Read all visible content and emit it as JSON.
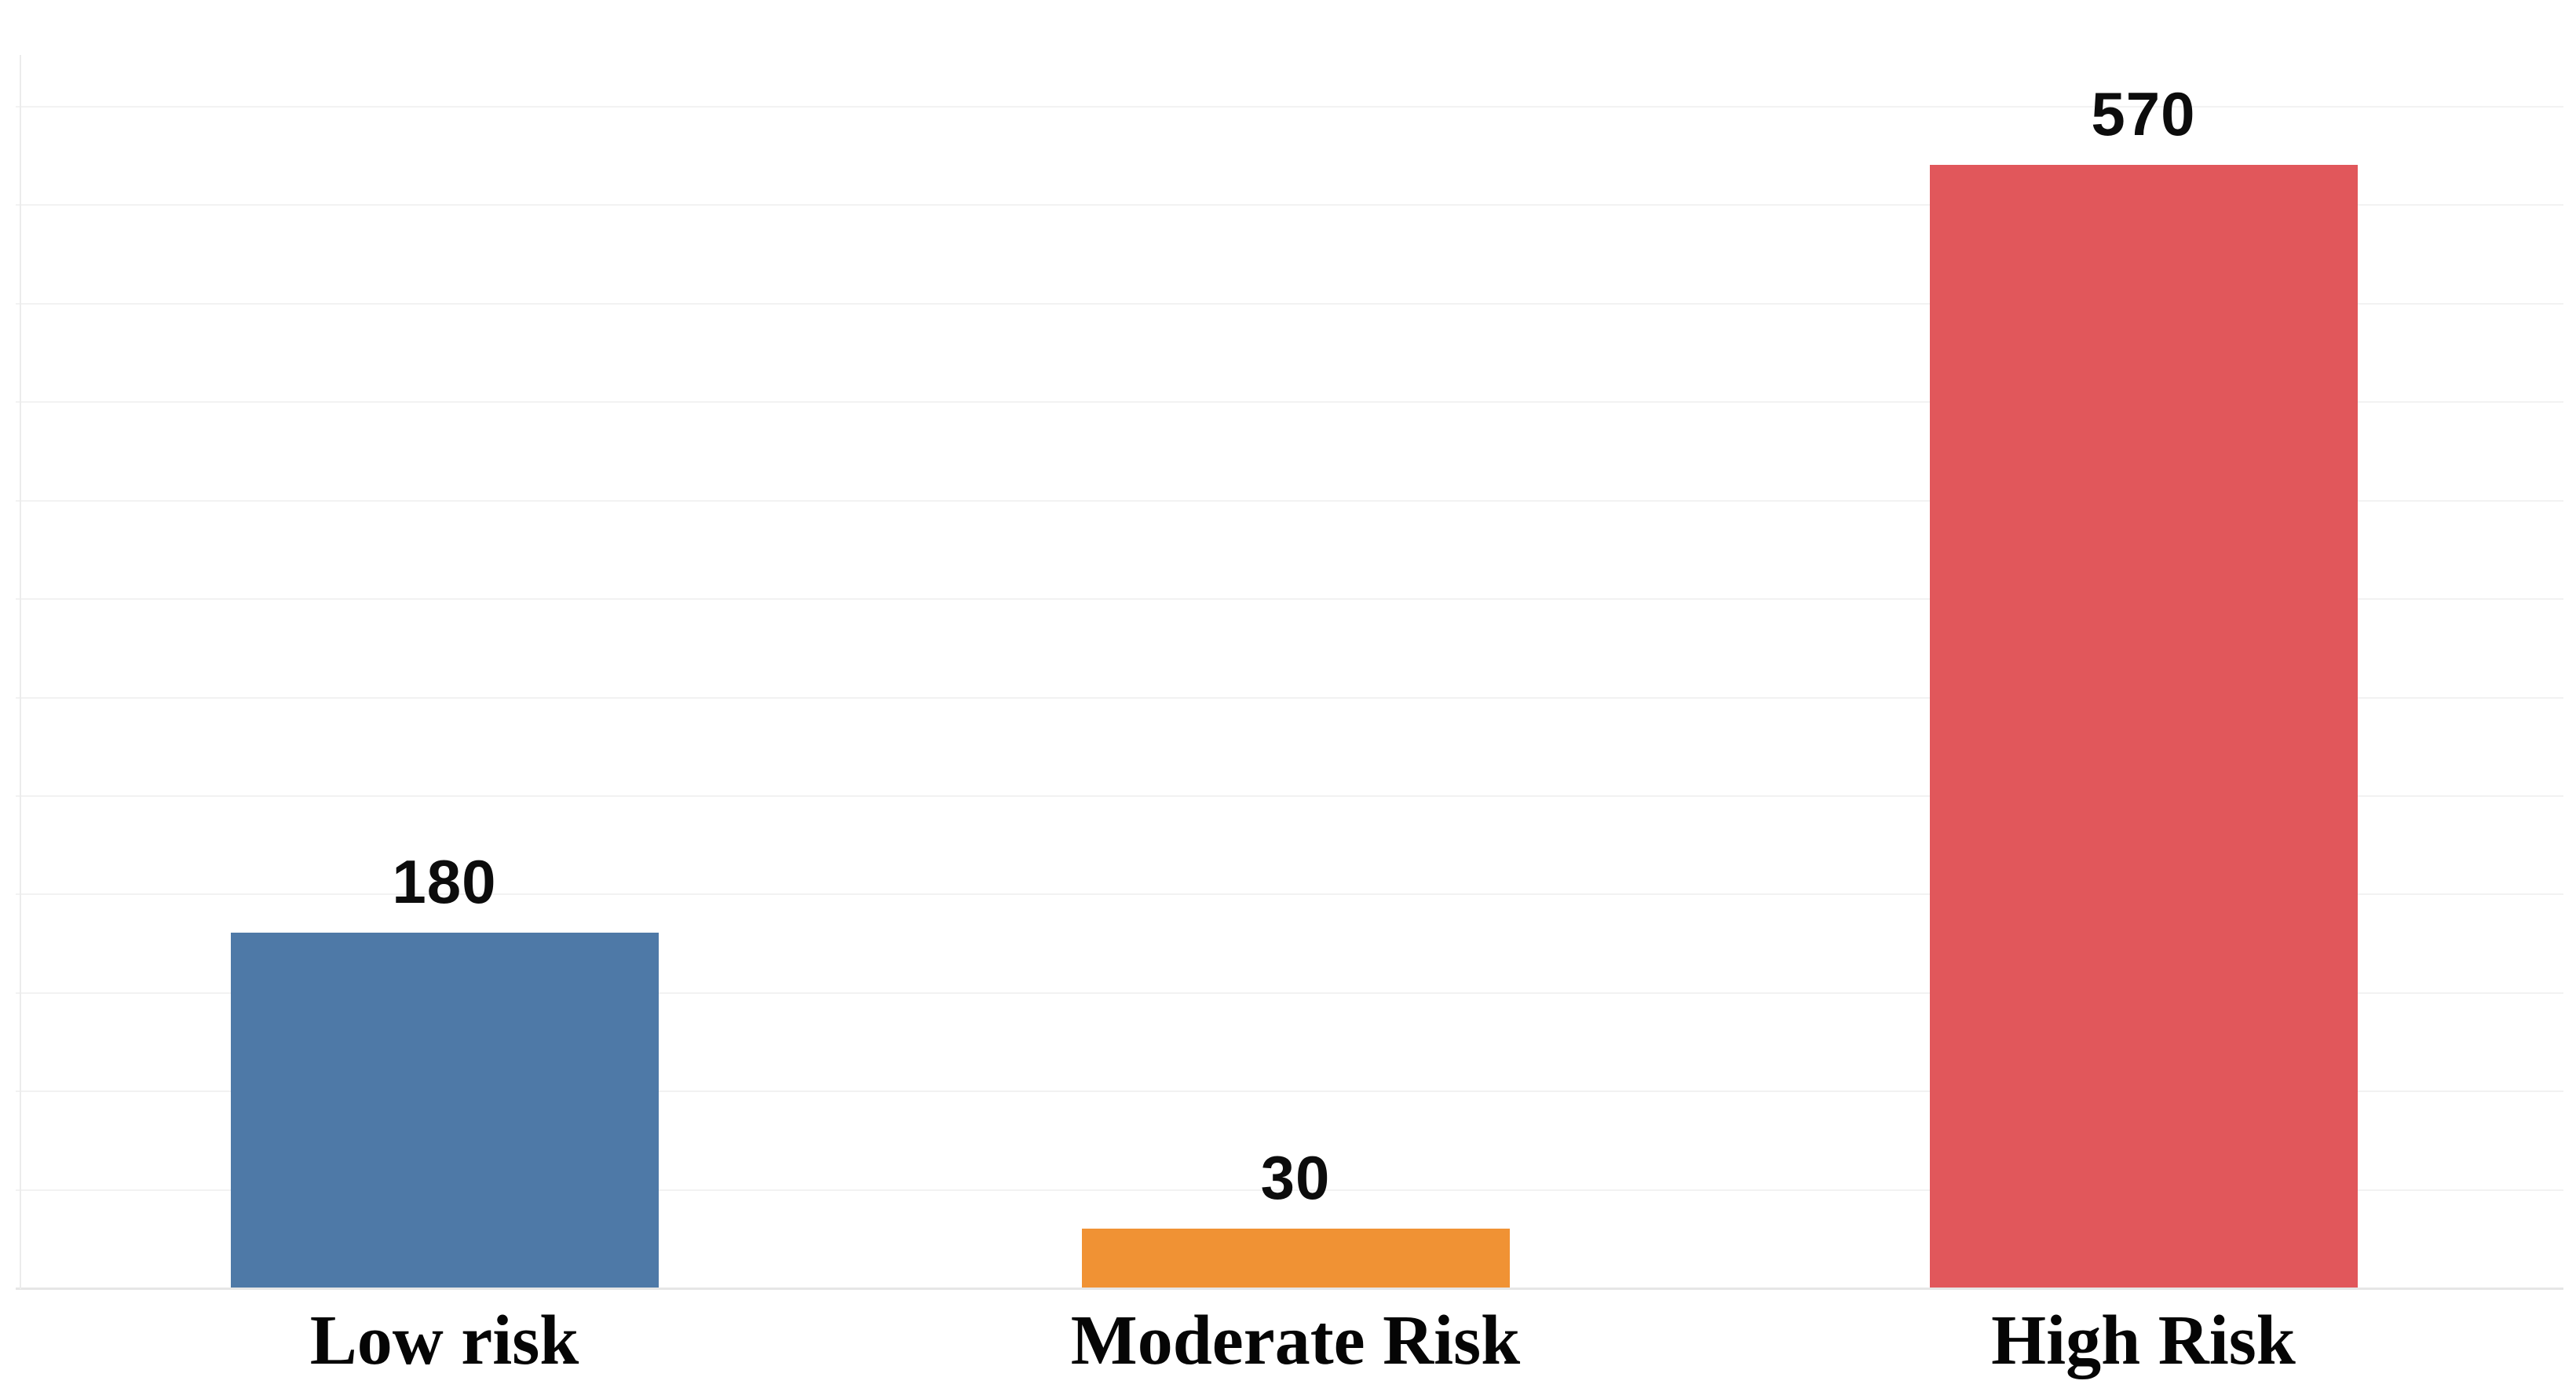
{
  "chart_data": {
    "type": "bar",
    "title": "",
    "xlabel": "",
    "ylabel": "",
    "categories": [
      "Low risk",
      "Moderate Risk",
      "High Risk"
    ],
    "values": [
      180,
      30,
      570
    ],
    "bars": [
      {
        "category": "Low risk",
        "value": 180,
        "label": "180",
        "color": "#4E79A7"
      },
      {
        "category": "Moderate Risk",
        "value": 30,
        "label": "30",
        "color": "#F09234"
      },
      {
        "category": "High Risk",
        "value": 570,
        "label": "570",
        "color": "#E1575B"
      }
    ],
    "ylim": [
      0,
      600
    ],
    "gridline_step": 50,
    "grid": "horizontal",
    "y_tick_labels_visible": false,
    "legend": "none",
    "data_labels": "above-bars",
    "background_color": "#ffffff",
    "gridline_color": "#f2f2f2",
    "axis_line_color": "#ececec",
    "label_color": "#0c0c0c"
  }
}
